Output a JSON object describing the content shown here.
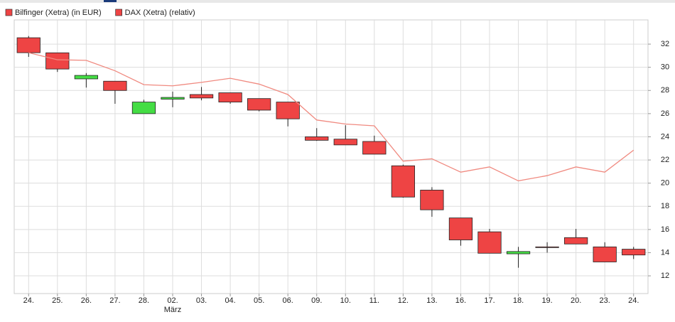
{
  "chart_data": {
    "type": "candlestick",
    "categories": [
      "24.",
      "25.",
      "26.",
      "27.",
      "28.",
      "02.",
      "03.",
      "04.",
      "05.",
      "06.",
      "09.",
      "10.",
      "11.",
      "12.",
      "13.",
      "16.",
      "17.",
      "18.",
      "19.",
      "20.",
      "23.",
      "24."
    ],
    "month_labels": [
      {
        "category": "02.",
        "label": "März"
      }
    ],
    "series": [
      {
        "name": "Bilfinger (Xetra) (in EUR)",
        "color": "#ee4444",
        "up_color": "#44dd44",
        "open": [
          32.55,
          31.25,
          29.0,
          28.8,
          26.0,
          27.25,
          27.65,
          27.8,
          27.3,
          27.0,
          24.0,
          23.8,
          23.6,
          21.5,
          19.4,
          17.0,
          15.8,
          13.9,
          14.5,
          15.3,
          14.5,
          14.3
        ],
        "high": [
          32.7,
          31.25,
          29.5,
          28.8,
          27.2,
          27.9,
          28.3,
          27.8,
          27.3,
          27.0,
          24.75,
          25.0,
          24.1,
          21.6,
          19.65,
          17.0,
          16.05,
          14.5,
          14.9,
          16.05,
          14.9,
          14.5
        ],
        "low": [
          30.9,
          29.6,
          28.25,
          26.85,
          26.0,
          26.55,
          27.15,
          26.85,
          26.2,
          24.9,
          23.65,
          23.3,
          22.5,
          18.75,
          17.1,
          14.6,
          13.95,
          12.7,
          14.0,
          14.75,
          13.2,
          13.45
        ],
        "close": [
          31.26,
          29.85,
          29.3,
          28.0,
          27.0,
          27.4,
          27.35,
          27.0,
          26.3,
          25.55,
          23.7,
          23.3,
          22.5,
          18.8,
          17.7,
          15.1,
          13.95,
          14.1,
          14.45,
          14.75,
          13.2,
          13.8
        ]
      },
      {
        "name": "DAX (Xetra) (relativ)",
        "type": "line",
        "color": "#f08a80",
        "values": [
          31.26,
          30.65,
          30.6,
          29.7,
          28.5,
          28.4,
          28.7,
          29.05,
          28.55,
          27.65,
          25.45,
          25.1,
          24.95,
          21.9,
          22.1,
          20.95,
          21.4,
          20.2,
          20.65,
          21.4,
          20.95,
          22.85
        ]
      }
    ],
    "ylim": [
      10.47,
      34.09
    ],
    "yticks": [
      12,
      14,
      16,
      18,
      20,
      22,
      24,
      26,
      28,
      30,
      32
    ],
    "grid": true,
    "legend": "top-left"
  }
}
